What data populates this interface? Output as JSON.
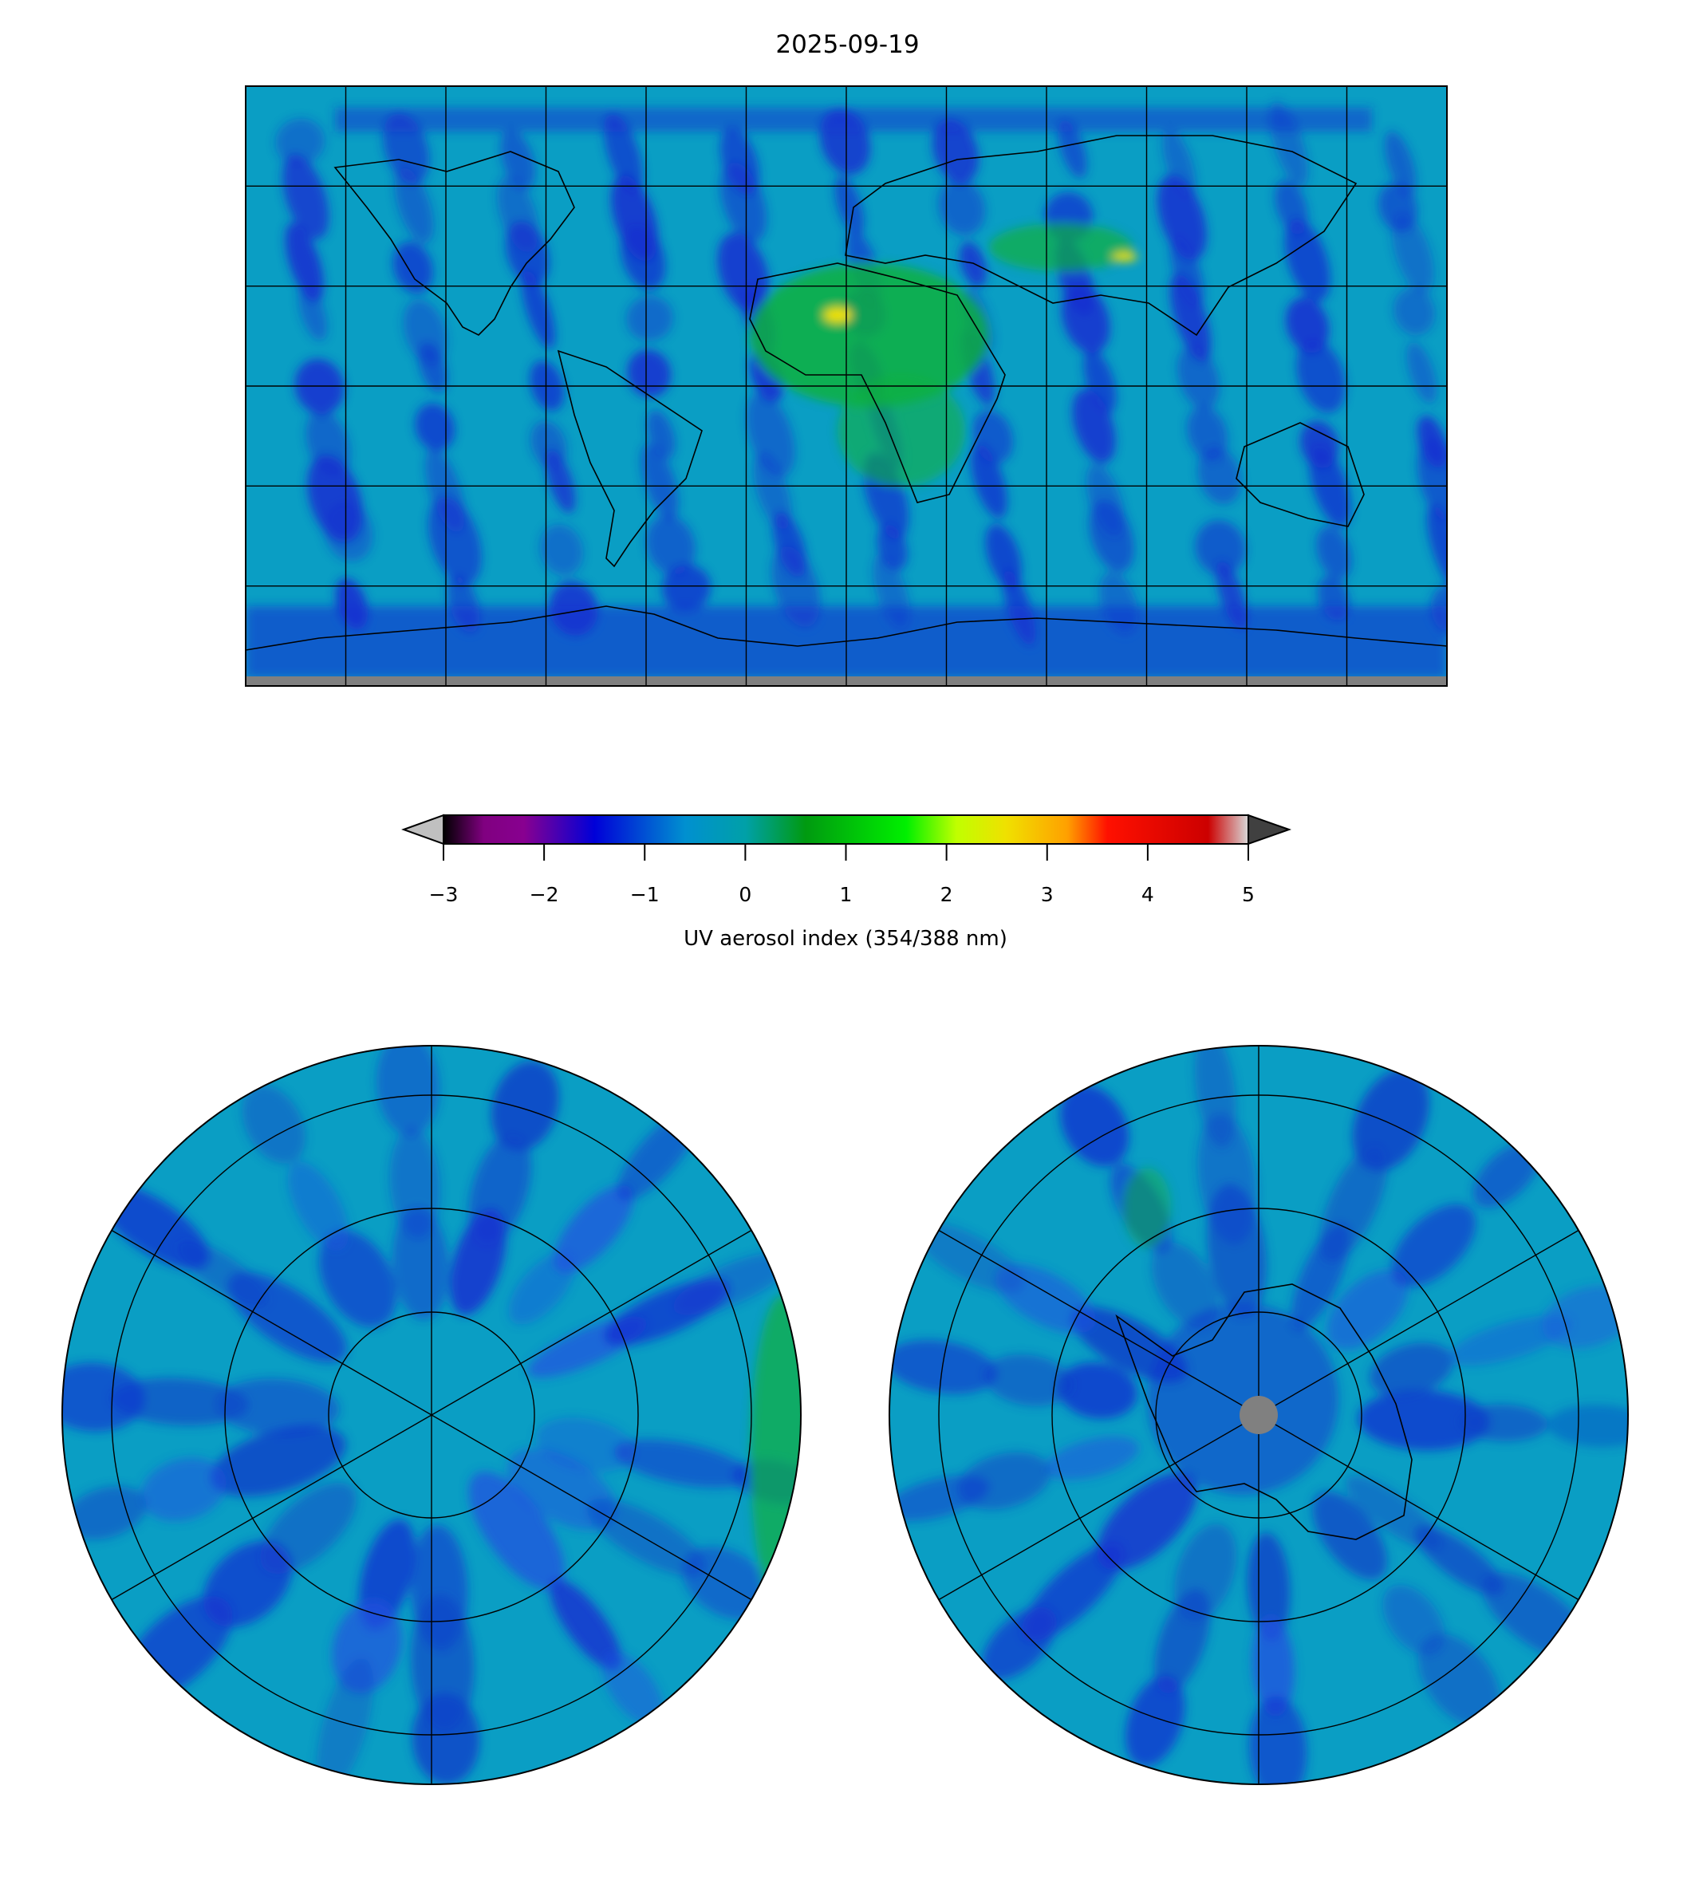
{
  "chart_data": {
    "type": "heatmap",
    "title": "2025-09-19",
    "panels": [
      {
        "name": "global",
        "projection": "equirectangular",
        "lon_range": [
          -180,
          180
        ],
        "lat_range": [
          -90,
          90
        ],
        "grid_spacing_deg": 30
      },
      {
        "name": "north-polar",
        "projection": "north polar stereographic"
      },
      {
        "name": "south-polar",
        "projection": "south polar stereographic"
      }
    ],
    "colorbar": {
      "label": "UV aerosol index (354/388 nm)",
      "range": [
        -3,
        5
      ],
      "extend": "both",
      "ticks": [
        "−3",
        "−2",
        "−1",
        "0",
        "1",
        "2",
        "3",
        "4",
        "5"
      ],
      "tick_values": [
        -3,
        -2,
        -1,
        0,
        1,
        2,
        3,
        4,
        5
      ],
      "colormap_stops": [
        {
          "v": -3.0,
          "c": "#000000"
        },
        {
          "v": -2.6,
          "c": "#800080"
        },
        {
          "v": -2.2,
          "c": "#880090"
        },
        {
          "v": -1.5,
          "c": "#0000d8"
        },
        {
          "v": -0.6,
          "c": "#0090d0"
        },
        {
          "v": 0.0,
          "c": "#00a0a8"
        },
        {
          "v": 0.6,
          "c": "#009a10"
        },
        {
          "v": 1.6,
          "c": "#00f000"
        },
        {
          "v": 2.1,
          "c": "#c0ff00"
        },
        {
          "v": 2.6,
          "c": "#f0e000"
        },
        {
          "v": 3.2,
          "c": "#ffa000"
        },
        {
          "v": 3.6,
          "c": "#ff1000"
        },
        {
          "v": 4.6,
          "c": "#cc0000"
        },
        {
          "v": 5.0,
          "c": "#d8d8d8"
        }
      ],
      "under_color": "#c0c0c0",
      "over_color": "#404040"
    },
    "background_value": -0.2,
    "colors": {
      "background": "#0a9ec4",
      "low": "#1530d0",
      "high": "#10b040",
      "nodata": "#808080"
    }
  }
}
